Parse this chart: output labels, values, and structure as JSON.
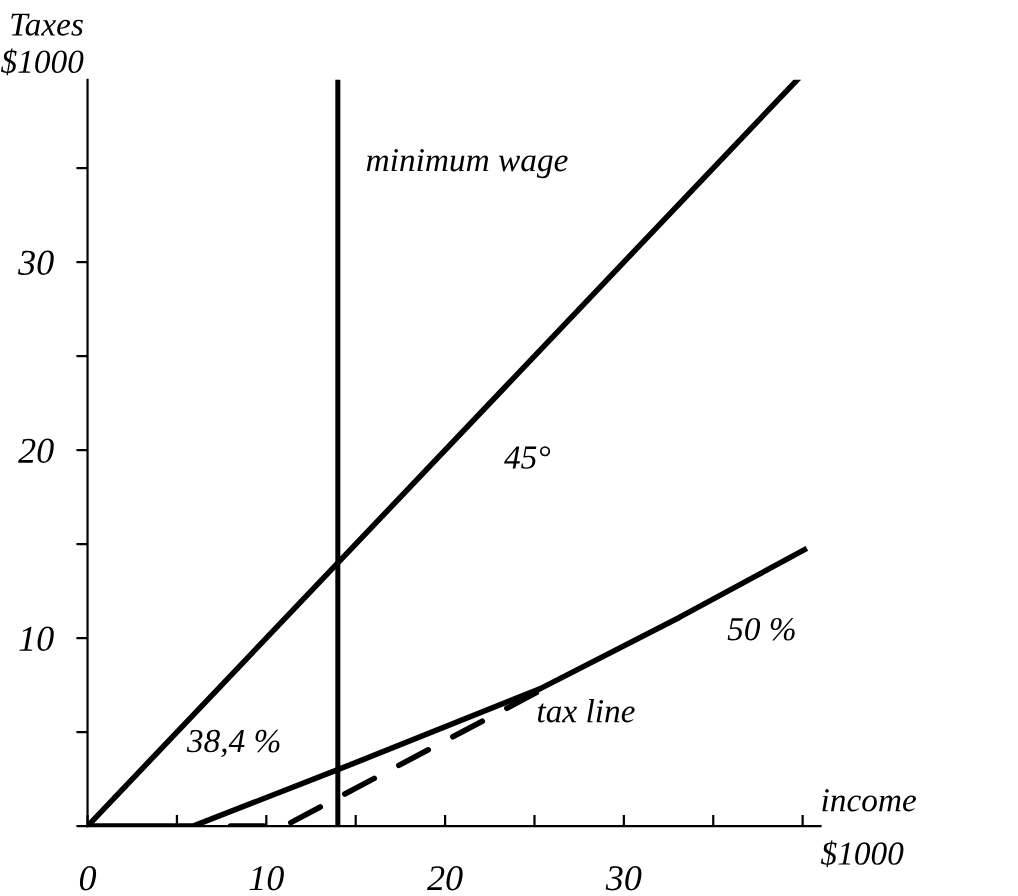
{
  "chart_data": {
    "type": "line",
    "xlabel": "income\n$1000",
    "ylabel": "Taxes\n$1000",
    "series": [
      {
        "color": "#000000",
        "x": [
          0,
          39.7
        ],
        "values": [
          0,
          39.7
        ],
        "line_style": "solid"
      },
      {
        "color": "#000000",
        "x": [
          0,
          5.9,
          14,
          25.3,
          33.1,
          40.1
        ],
        "values": [
          0,
          0,
          3.0,
          7.3,
          11.1,
          14.7
        ],
        "line_style": "solid"
      },
      {
        "color": "#000000",
        "x": [
          8,
          11,
          25.3
        ],
        "values": [
          0,
          0,
          7.2
        ],
        "line_style": "dashed"
      }
    ],
    "ref_lines": [
      {
        "axis": "x",
        "value": 14,
        "label": "minimum wage",
        "color": "#000000"
      }
    ],
    "annotations": [
      "45°",
      "38,4 %",
      "50 %",
      "tax line"
    ],
    "xlim": [
      0,
      41
    ],
    "ylim": [
      0,
      39.7
    ],
    "xticks": [
      0,
      {
        "value": 5,
        "label": null
      },
      10,
      {
        "value": 15,
        "label": null
      },
      20,
      {
        "value": 25,
        "label": null
      },
      30,
      {
        "value": 35,
        "label": null
      },
      {
        "value": 40,
        "label": null
      }
    ],
    "yticks": [
      {
        "value": 0,
        "label": null
      },
      {
        "value": 5,
        "label": null
      },
      10,
      {
        "value": 15,
        "label": null
      },
      20,
      {
        "value": 25,
        "label": null
      },
      30,
      {
        "value": 35,
        "label": null
      }
    ],
    "grid": false,
    "marker": "none"
  }
}
